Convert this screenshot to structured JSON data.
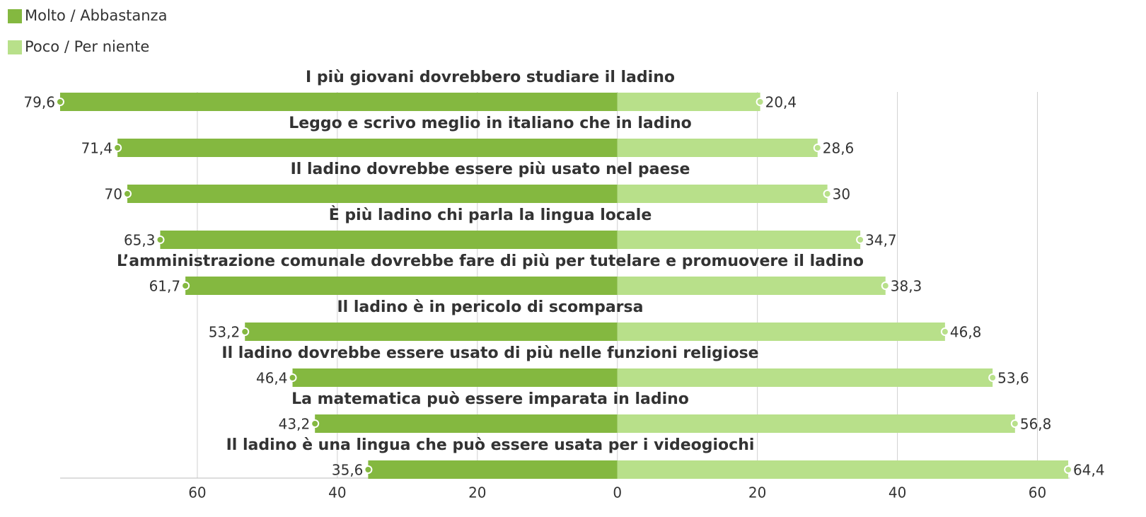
{
  "chart_data": {
    "type": "diverging_bar",
    "categories": [
      "I più giovani dovrebbero studiare il ladino",
      "Leggo e scrivo meglio in italiano che in ladino",
      "Il ladino dovrebbe essere più usato nel paese",
      "È più ladino chi parla la lingua locale",
      "L’amministrazione comunale dovrebbe fare di più per tutelare e promuovere il ladino",
      "Il ladino è in pericolo di scomparsa",
      "Il ladino dovrebbe essere usato di più nelle funzioni religiose",
      "La matematica può essere imparata in ladino",
      "Il ladino è una lingua che può essere usata per i videogiochi"
    ],
    "series": [
      {
        "name": "Molto / Abbastanza",
        "color": "#84b840",
        "values": [
          79.6,
          71.4,
          70,
          65.3,
          61.7,
          53.2,
          46.4,
          43.2,
          35.6
        ],
        "value_labels": [
          "79,6",
          "71,4",
          "70",
          "65,3",
          "61,7",
          "53,2",
          "46,4",
          "43,2",
          "35,6"
        ]
      },
      {
        "name": "Poco / Per niente",
        "color": "#b8e08a",
        "values": [
          20.4,
          28.6,
          30,
          34.7,
          38.3,
          46.8,
          53.6,
          56.8,
          64.4
        ],
        "value_labels": [
          "20,4",
          "28,6",
          "30",
          "34,7",
          "38,3",
          "46,8",
          "53,6",
          "56,8",
          "64,4"
        ]
      }
    ],
    "xlim": [
      -80,
      65
    ],
    "xticks": [
      {
        "value": -60,
        "label": "60"
      },
      {
        "value": -40,
        "label": "40"
      },
      {
        "value": -20,
        "label": "20"
      },
      0,
      20,
      40,
      60
    ],
    "grid": true,
    "legend": "top-left"
  }
}
